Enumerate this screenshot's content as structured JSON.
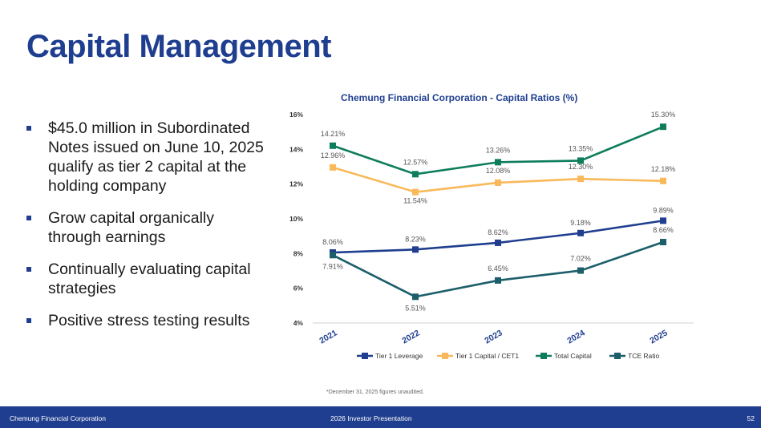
{
  "page": {
    "title": "Capital Management",
    "bullets": [
      "$45.0 million in Subordinated Notes issued on June 10, 2025 qualify as tier 2 capital at the holding company",
      "Grow capital organically through earnings",
      "Continually evaluating capital strategies",
      "Positive stress testing results"
    ],
    "footnote": "*December 31, 2025 figures unaudited.",
    "footer": {
      "company": "Chemung Financial Corporation",
      "presentation": "2026 Investor Presentation",
      "page_number": "52"
    }
  },
  "colors": {
    "title": "#1f3e8f",
    "footer_bg": "#1f3e8f",
    "tier1_leverage": "#1f3e8f",
    "tier1_capital": "#f9b95a",
    "total_capital": "#0e7d5c",
    "tce_ratio": "#1c5f6b"
  },
  "chart_data": {
    "type": "line",
    "title": "Chemung Financial Corporation - Capital Ratios (%)",
    "categories": [
      "2021",
      "2022",
      "2023",
      "2024",
      "2025"
    ],
    "ylim": [
      4,
      16
    ],
    "yticks": [
      4,
      6,
      8,
      10,
      12,
      14,
      16
    ],
    "ytick_labels": [
      "4%",
      "6%",
      "8%",
      "10%",
      "12%",
      "14%",
      "16%"
    ],
    "grid": false,
    "legend_position": "bottom",
    "series": [
      {
        "name": "Tier 1 Leverage",
        "color": "#1f3e8f",
        "values": [
          8.06,
          8.23,
          8.62,
          9.18,
          9.89
        ],
        "labels": [
          "8.06%",
          "8.23%",
          "8.62%",
          "9.18%",
          "9.89%"
        ],
        "label_side": "above"
      },
      {
        "name": "Tier 1 Capital / CET1",
        "color": "#f9b95a",
        "values": [
          12.96,
          11.54,
          12.08,
          12.3,
          12.18
        ],
        "labels": [
          "12.96%",
          "11.54%",
          "12.08%",
          "12.30%",
          "12.18%"
        ],
        "label_side": "above"
      },
      {
        "name": "Total Capital",
        "color": "#0e7d5c",
        "values": [
          14.21,
          12.57,
          13.26,
          13.35,
          15.3
        ],
        "labels": [
          "14.21%",
          "12.57%",
          "13.26%",
          "13.35%",
          "15.30%"
        ],
        "label_side": "above"
      },
      {
        "name": "TCE Ratio",
        "color": "#1c5f6b",
        "values": [
          7.91,
          5.51,
          6.45,
          7.02,
          8.66
        ],
        "labels": [
          "7.91%",
          "5.51%",
          "6.45%",
          "7.02%",
          "8.66%"
        ],
        "label_side": "mixed"
      }
    ]
  }
}
